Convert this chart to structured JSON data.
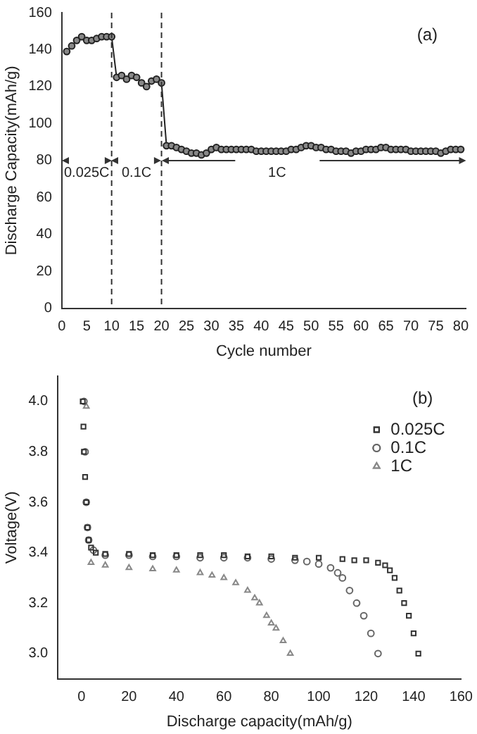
{
  "chart_data": [
    {
      "type": "line",
      "xlabel": "Cycle number",
      "ylabel": "Discharge Capacity(mAh/g)",
      "marker": "circle",
      "legend": false,
      "xlim": [
        0,
        81
      ],
      "xticks": [
        0,
        5,
        10,
        15,
        20,
        25,
        30,
        35,
        40,
        45,
        50,
        55,
        60,
        65,
        70,
        75,
        80
      ],
      "ylim": [
        0,
        160
      ],
      "yticks": [
        0,
        20,
        40,
        60,
        80,
        100,
        120,
        140,
        160
      ],
      "x": [
        1,
        2,
        3,
        4,
        5,
        6,
        7,
        8,
        9,
        10,
        11,
        12,
        13,
        14,
        15,
        16,
        17,
        18,
        19,
        20,
        21,
        22,
        23,
        24,
        25,
        26,
        27,
        28,
        29,
        30,
        31,
        32,
        33,
        34,
        35,
        36,
        37,
        38,
        39,
        40,
        41,
        42,
        43,
        44,
        45,
        46,
        47,
        48,
        49,
        50,
        51,
        52,
        53,
        54,
        55,
        56,
        57,
        58,
        59,
        60,
        61,
        62,
        63,
        64,
        65,
        66,
        67,
        68,
        69,
        70,
        71,
        72,
        73,
        74,
        75,
        76,
        77,
        78,
        79,
        80
      ],
      "series": [
        {
          "color": "#222222",
          "values": [
            139,
            142,
            145,
            147,
            145,
            145,
            146,
            147,
            147,
            147,
            125,
            126,
            124,
            126,
            125,
            122,
            120,
            123,
            124,
            122,
            88,
            88,
            87,
            86,
            85,
            84,
            84,
            83,
            84,
            86,
            87,
            86,
            86,
            86,
            86,
            86,
            86,
            86,
            85,
            85,
            85,
            85,
            85,
            85,
            85,
            86,
            86,
            87,
            88,
            88,
            87,
            87,
            86,
            86,
            85,
            85,
            85,
            84,
            85,
            85,
            86,
            86,
            86,
            87,
            87,
            86,
            86,
            86,
            86,
            85,
            85,
            85,
            85,
            85,
            85,
            84,
            85,
            86,
            86,
            86
          ]
        }
      ],
      "ref_lines": [
        {
          "axis": "x",
          "value": 10,
          "line_style": "dashed"
        },
        {
          "axis": "x",
          "value": 20,
          "line_style": "dashed"
        }
      ],
      "annotations": [
        "(a)",
        "0.025C",
        "0.1C",
        "1C"
      ]
    },
    {
      "type": "scatter",
      "xlabel": "Discharge capacity(mAh/g)",
      "ylabel": "Voltage(V)",
      "legend": "top right",
      "xlim": [
        -10,
        160
      ],
      "xticks": [
        0,
        20,
        40,
        60,
        80,
        100,
        120,
        140,
        160
      ],
      "ylim": [
        2.9,
        4.1
      ],
      "yticks": [
        {
          "value": 3.0,
          "label": "3.0"
        },
        3.2,
        3.4,
        3.6,
        3.8,
        {
          "value": 4.0,
          "label": "4.0"
        }
      ],
      "series": [
        {
          "name": "0.025C",
          "color": "#333333",
          "marker": "square",
          "x": [
            0.5,
            0.8,
            1,
            1.5,
            2,
            2.5,
            3,
            4,
            6,
            10,
            20,
            30,
            40,
            50,
            60,
            70,
            80,
            90,
            100,
            110,
            115,
            120,
            125,
            128,
            130,
            132,
            134,
            136,
            138,
            140,
            142
          ],
          "values": [
            4.0,
            3.9,
            3.8,
            3.7,
            3.6,
            3.5,
            3.45,
            3.42,
            3.4,
            3.395,
            3.395,
            3.39,
            3.39,
            3.39,
            3.39,
            3.385,
            3.385,
            3.38,
            3.38,
            3.375,
            3.37,
            3.37,
            3.36,
            3.35,
            3.33,
            3.3,
            3.25,
            3.2,
            3.15,
            3.08,
            3.0
          ]
        },
        {
          "name": "0.1C",
          "color": "#666666",
          "marker": "circle",
          "x": [
            1,
            1.5,
            2,
            2.5,
            3,
            5,
            10,
            20,
            30,
            40,
            50,
            60,
            70,
            80,
            90,
            95,
            100,
            105,
            108,
            110,
            113,
            116,
            119,
            122,
            125
          ],
          "values": [
            4.0,
            3.8,
            3.6,
            3.5,
            3.45,
            3.41,
            3.39,
            3.39,
            3.385,
            3.385,
            3.38,
            3.38,
            3.38,
            3.375,
            3.37,
            3.365,
            3.355,
            3.34,
            3.32,
            3.3,
            3.25,
            3.2,
            3.15,
            3.08,
            3.0
          ]
        },
        {
          "name": "1C",
          "color": "#888888",
          "marker": "triangle",
          "x": [
            2,
            4,
            10,
            20,
            30,
            40,
            50,
            55,
            60,
            65,
            70,
            73,
            75,
            78,
            80,
            82,
            85,
            88
          ],
          "values": [
            3.98,
            3.36,
            3.35,
            3.34,
            3.335,
            3.33,
            3.32,
            3.31,
            3.3,
            3.28,
            3.25,
            3.22,
            3.2,
            3.15,
            3.12,
            3.1,
            3.05,
            3.0
          ]
        }
      ],
      "annotations": [
        "(b)"
      ]
    }
  ]
}
